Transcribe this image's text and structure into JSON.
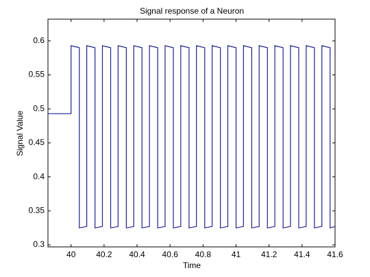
{
  "chart_data": {
    "type": "line",
    "title": "Signal response of a Neuron",
    "xlabel": "Time",
    "ylabel": "Signal Value",
    "color": "#1f1f8f",
    "x": [
      39.86,
      40,
      40,
      40.05,
      40.05,
      40.095,
      40.095,
      40.145,
      40.145,
      40.19,
      40.19,
      40.24,
      40.24,
      40.285,
      40.285,
      40.335,
      40.335,
      40.38,
      40.38,
      40.43,
      40.43,
      40.475,
      40.475,
      40.525,
      40.525,
      40.57,
      40.57,
      40.62,
      40.62,
      40.665,
      40.665,
      40.715,
      40.715,
      40.76,
      40.76,
      40.81,
      40.81,
      40.855,
      40.855,
      40.905,
      40.905,
      40.95,
      40.95,
      41,
      41,
      41.045,
      41.045,
      41.095,
      41.095,
      41.14,
      41.14,
      41.19,
      41.19,
      41.235,
      41.235,
      41.285,
      41.285,
      41.33,
      41.33,
      41.38,
      41.38,
      41.425,
      41.425,
      41.475,
      41.475,
      41.52,
      41.52,
      41.57,
      41.57,
      41.6
    ],
    "values": [
      0.493,
      0.493,
      0.593,
      0.59,
      0.325,
      0.327,
      0.593,
      0.59,
      0.325,
      0.327,
      0.593,
      0.59,
      0.325,
      0.327,
      0.593,
      0.59,
      0.325,
      0.327,
      0.593,
      0.59,
      0.325,
      0.327,
      0.593,
      0.59,
      0.325,
      0.327,
      0.593,
      0.59,
      0.325,
      0.327,
      0.593,
      0.59,
      0.325,
      0.327,
      0.593,
      0.59,
      0.325,
      0.327,
      0.593,
      0.59,
      0.325,
      0.327,
      0.593,
      0.59,
      0.325,
      0.327,
      0.593,
      0.59,
      0.325,
      0.327,
      0.593,
      0.59,
      0.325,
      0.327,
      0.593,
      0.59,
      0.325,
      0.327,
      0.593,
      0.59,
      0.325,
      0.327,
      0.593,
      0.59,
      0.325,
      0.327,
      0.593,
      0.59,
      0.325,
      0.327
    ],
    "xlim": [
      39.86,
      41.6
    ],
    "ylim": [
      0.297,
      0.632
    ],
    "xticks": [
      40,
      40.2,
      40.4,
      40.6,
      40.8,
      41,
      41.2,
      41.4,
      41.6
    ],
    "yticks": [
      0.3,
      0.35,
      0.4,
      0.45,
      0.5,
      0.55,
      0.6
    ]
  }
}
